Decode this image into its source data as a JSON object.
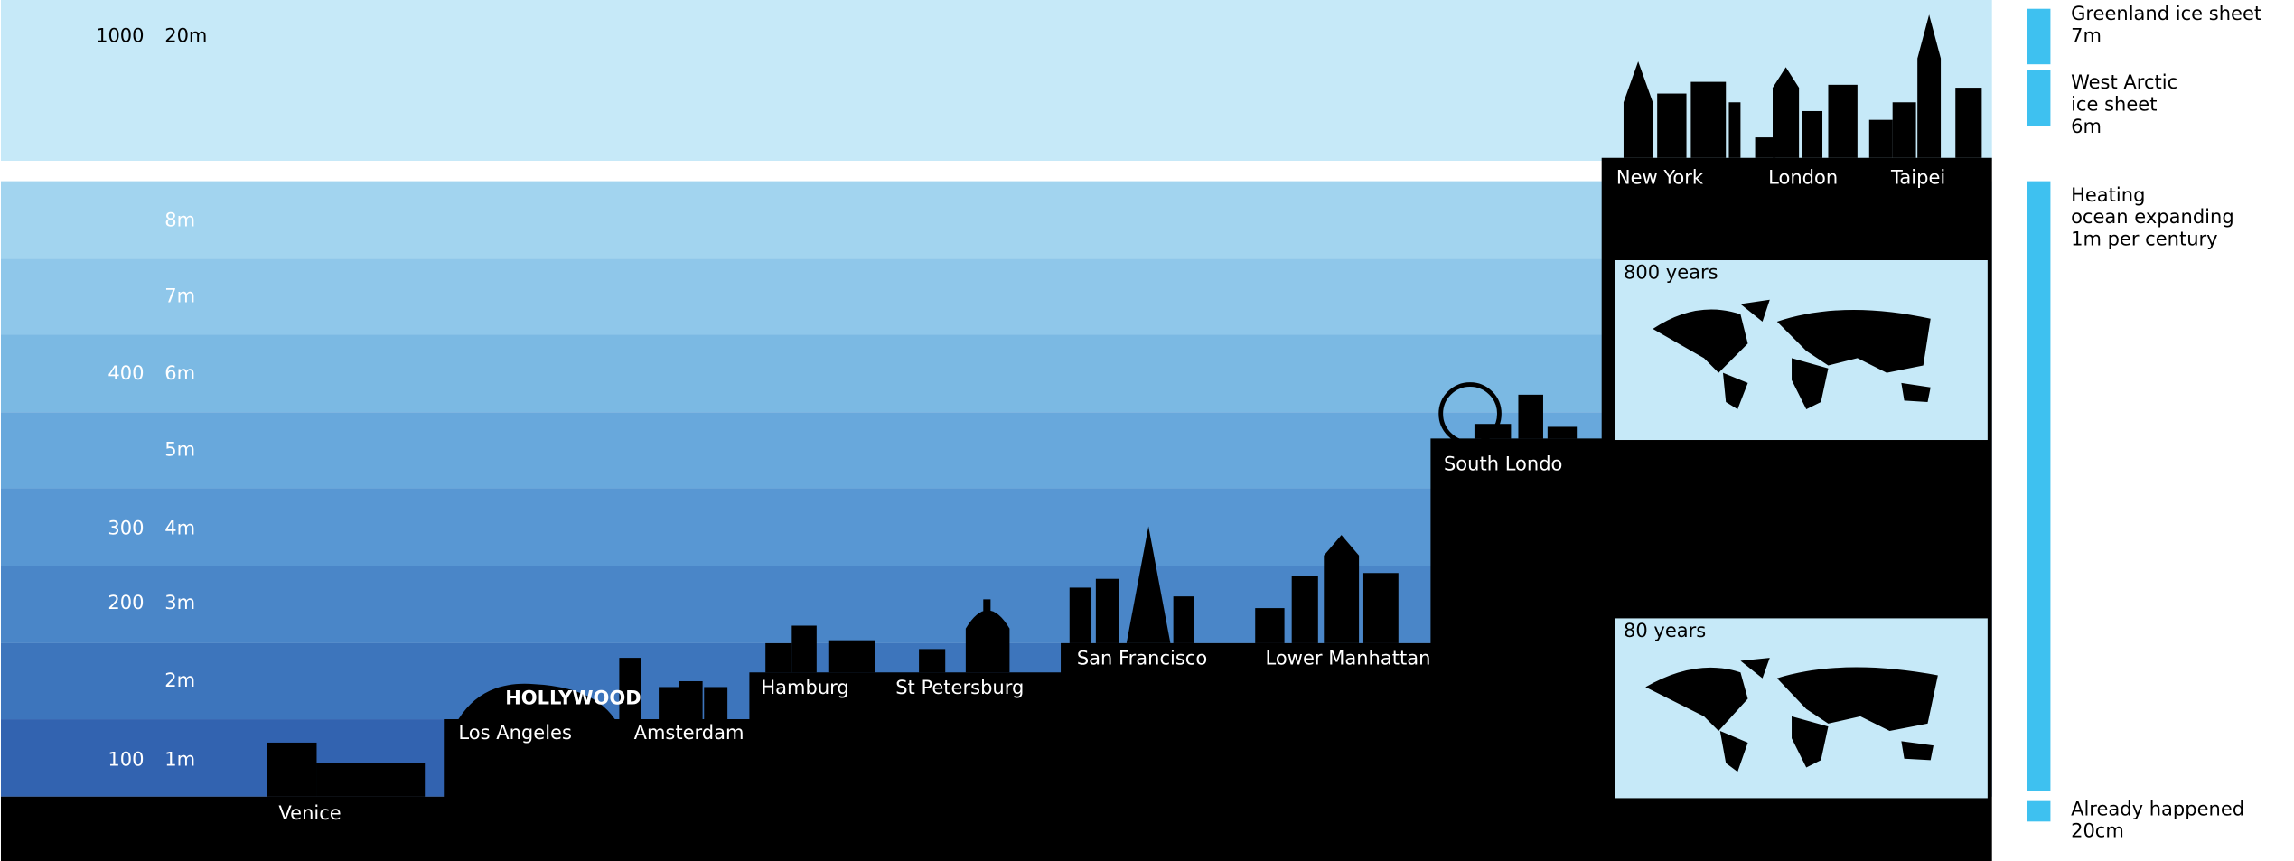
{
  "levels": [
    {
      "years": "1000",
      "height": "20m"
    },
    {
      "height": "8m"
    },
    {
      "height": "7m"
    },
    {
      "years": "400",
      "height": "6m"
    },
    {
      "height": "5m"
    },
    {
      "years": "300",
      "height": "4m"
    },
    {
      "years": "200",
      "height": "3m"
    },
    {
      "height": "2m"
    },
    {
      "years": "100",
      "height": "1m"
    }
  ],
  "cities": [
    "New York",
    "London",
    "Taipei",
    "South Londo",
    "San Francisco",
    "Lower Manhattan",
    "Hamburg",
    "St Petersburg",
    "Los Angeles",
    "Amsterdam",
    "Venice"
  ],
  "hollywood_sign": "HOLLYWOOD",
  "maps": [
    "800 years",
    "80 years"
  ],
  "legend": [
    [
      "Greenland ice sheet",
      "7m"
    ],
    [
      "West Arctic",
      "ice sheet",
      "6m"
    ],
    [
      "Heating",
      "ocean expanding",
      "1m per century"
    ],
    [
      "Already happened",
      "20cm"
    ]
  ]
}
